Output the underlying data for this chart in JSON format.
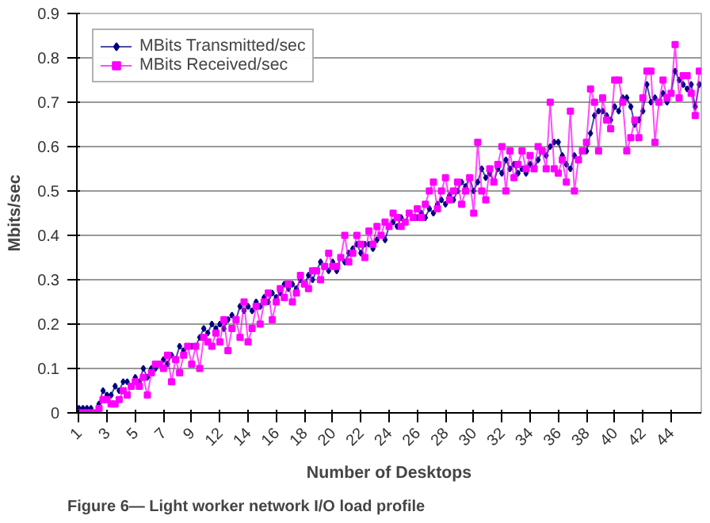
{
  "chart_data": {
    "type": "line",
    "xlabel": "Number of Desktops",
    "ylabel": "Mbits/sec",
    "annotations": [
      "Figure 6— Light worker network I/O load profile"
    ],
    "categories": [
      "1",
      null,
      null,
      null,
      null,
      null,
      null,
      "3",
      null,
      null,
      null,
      null,
      null,
      null,
      "5",
      null,
      null,
      null,
      null,
      null,
      null,
      "7",
      null,
      null,
      null,
      null,
      null,
      null,
      "9",
      null,
      null,
      null,
      null,
      null,
      null,
      "12",
      null,
      null,
      null,
      null,
      null,
      null,
      "14",
      null,
      null,
      null,
      null,
      null,
      null,
      "16",
      null,
      null,
      null,
      null,
      null,
      null,
      "18",
      null,
      null,
      null,
      null,
      null,
      null,
      "20",
      null,
      null,
      null,
      null,
      null,
      null,
      "22",
      null,
      null,
      null,
      null,
      null,
      null,
      "24",
      null,
      null,
      null,
      null,
      null,
      null,
      "26",
      null,
      null,
      null,
      null,
      null,
      null,
      "28",
      null,
      null,
      null,
      null,
      null,
      null,
      "30",
      null,
      null,
      null,
      null,
      null,
      null,
      "32",
      null,
      null,
      null,
      null,
      null,
      null,
      "34",
      null,
      null,
      null,
      null,
      null,
      null,
      "36",
      null,
      null,
      null,
      null,
      null,
      null,
      "38",
      null,
      null,
      null,
      null,
      null,
      null,
      "40",
      null,
      null,
      null,
      null,
      null,
      null,
      "42",
      null,
      null,
      null,
      null,
      null,
      null,
      "44",
      null,
      null,
      null,
      null,
      null,
      null,
      null
    ],
    "series": [
      {
        "name": "MBits Transmitted/sec",
        "color": "#000080",
        "marker": "diamond",
        "values": [
          0.01,
          0.01,
          0.01,
          0.01,
          0.0,
          0.02,
          0.05,
          0.04,
          0.04,
          0.06,
          0.05,
          0.07,
          0.07,
          0.06,
          0.08,
          0.07,
          0.1,
          0.08,
          0.1,
          0.1,
          0.11,
          0.12,
          0.11,
          0.13,
          0.12,
          0.15,
          0.14,
          0.15,
          0.15,
          0.15,
          0.17,
          0.19,
          0.18,
          0.2,
          0.19,
          0.2,
          0.19,
          0.21,
          0.22,
          0.21,
          0.24,
          0.23,
          0.24,
          0.23,
          0.25,
          0.24,
          0.26,
          0.25,
          0.27,
          0.26,
          0.27,
          0.29,
          0.28,
          0.29,
          0.28,
          0.3,
          0.29,
          0.31,
          0.3,
          0.32,
          0.34,
          0.33,
          0.32,
          0.34,
          0.32,
          0.35,
          0.34,
          0.36,
          0.37,
          0.38,
          0.36,
          0.38,
          0.38,
          0.37,
          0.39,
          0.4,
          0.39,
          0.42,
          0.43,
          0.42,
          0.44,
          0.43,
          0.45,
          0.44,
          0.44,
          0.45,
          0.44,
          0.46,
          0.45,
          0.47,
          0.48,
          0.47,
          0.49,
          0.48,
          0.5,
          0.52,
          0.51,
          0.53,
          0.5,
          0.52,
          0.55,
          0.53,
          0.54,
          0.52,
          0.55,
          0.54,
          0.57,
          0.55,
          0.56,
          0.54,
          0.55,
          0.54,
          0.56,
          0.55,
          0.57,
          0.59,
          0.58,
          0.6,
          0.61,
          0.61,
          0.58,
          0.56,
          0.55,
          0.58,
          0.57,
          0.59,
          0.59,
          0.63,
          0.67,
          0.68,
          0.68,
          0.67,
          0.66,
          0.69,
          0.68,
          0.71,
          0.71,
          0.69,
          0.65,
          0.66,
          0.68,
          0.74,
          0.7,
          0.71,
          0.7,
          0.72,
          0.7,
          0.72,
          0.77,
          0.75,
          0.74,
          0.73,
          0.74,
          0.69,
          0.74
        ]
      },
      {
        "name": "MBits Received/sec",
        "color": "#ff00ff",
        "marker": "square",
        "values": [
          0.0,
          0.0,
          0.0,
          0.0,
          0.0,
          0.01,
          0.03,
          0.03,
          0.02,
          0.02,
          0.03,
          0.05,
          0.04,
          0.06,
          0.07,
          0.06,
          0.08,
          0.04,
          0.09,
          0.11,
          0.11,
          0.1,
          0.13,
          0.07,
          0.12,
          0.09,
          0.13,
          0.15,
          0.11,
          0.15,
          0.1,
          0.17,
          0.16,
          0.15,
          0.18,
          0.16,
          0.21,
          0.14,
          0.19,
          0.21,
          0.17,
          0.25,
          0.16,
          0.19,
          0.24,
          0.2,
          0.25,
          0.27,
          0.21,
          0.25,
          0.28,
          0.26,
          0.29,
          0.25,
          0.27,
          0.31,
          0.29,
          0.28,
          0.32,
          0.32,
          0.3,
          0.33,
          0.36,
          0.33,
          0.33,
          0.35,
          0.4,
          0.34,
          0.36,
          0.4,
          0.38,
          0.35,
          0.41,
          0.38,
          0.42,
          0.4,
          0.43,
          0.42,
          0.45,
          0.44,
          0.42,
          0.43,
          0.45,
          0.44,
          0.46,
          0.44,
          0.47,
          0.5,
          0.52,
          0.46,
          0.5,
          0.53,
          0.48,
          0.5,
          0.52,
          0.47,
          0.5,
          0.53,
          0.45,
          0.61,
          0.5,
          0.48,
          0.55,
          0.52,
          0.56,
          0.6,
          0.5,
          0.59,
          0.53,
          0.56,
          0.59,
          0.55,
          0.58,
          0.55,
          0.6,
          0.59,
          0.55,
          0.7,
          0.55,
          0.54,
          0.57,
          0.52,
          0.68,
          0.5,
          0.57,
          0.59,
          0.61,
          0.73,
          0.7,
          0.59,
          0.71,
          0.66,
          0.64,
          0.75,
          0.75,
          0.7,
          0.59,
          0.62,
          0.66,
          0.62,
          0.71,
          0.77,
          0.77,
          0.61,
          0.7,
          0.75,
          0.71,
          0.72,
          0.83,
          0.71,
          0.76,
          0.76,
          0.72,
          0.67,
          0.77
        ]
      }
    ],
    "ylim": [
      0,
      0.9
    ],
    "yticks": [
      0,
      0.1,
      0.2,
      0.3,
      0.4,
      0.5,
      0.6,
      0.7,
      0.8,
      0.9
    ],
    "grid": "y",
    "legend": "top left",
    "line_style": "solid"
  }
}
